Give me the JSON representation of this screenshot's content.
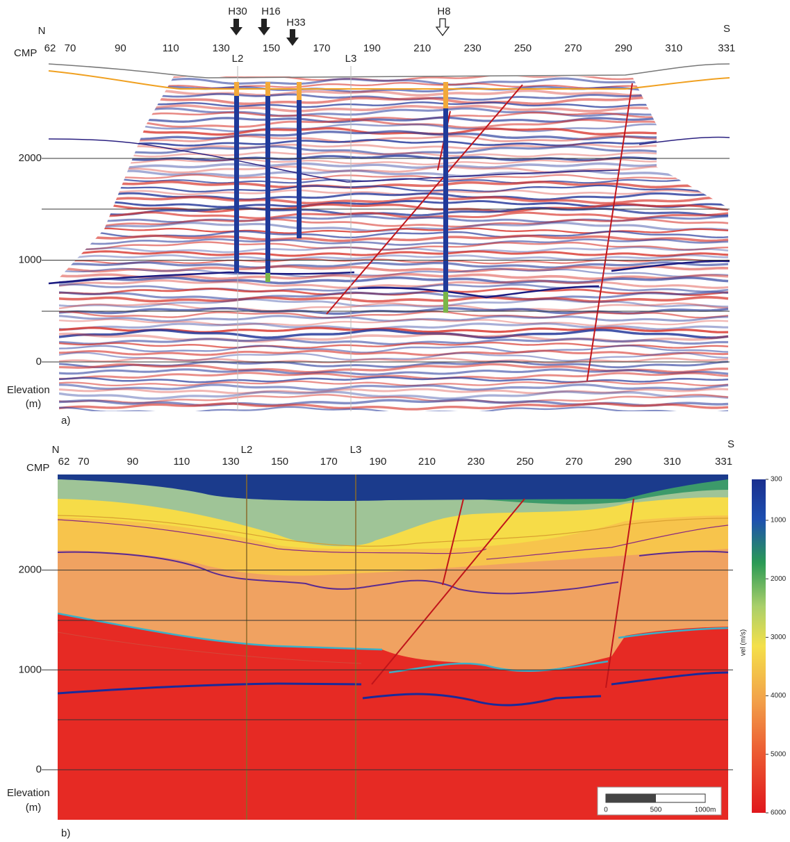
{
  "panel_a": {
    "label": "a)",
    "north": "N",
    "south": "S",
    "cmp_label": "CMP",
    "cmps": [
      62,
      70,
      90,
      110,
      130,
      150,
      170,
      190,
      210,
      230,
      250,
      270,
      290,
      310,
      331
    ],
    "lines": [
      "L2",
      "L3"
    ],
    "wells": [
      "H30",
      "H16",
      "H33",
      "H8"
    ],
    "elevation_ticks": [
      2000,
      1000,
      0
    ],
    "elevation_label": "Elevation",
    "elevation_unit": "(m)"
  },
  "panel_b": {
    "label": "b)",
    "north": "N",
    "south": "S",
    "cmp_label": "CMP",
    "cmps": [
      62,
      70,
      90,
      110,
      130,
      150,
      170,
      190,
      210,
      230,
      250,
      270,
      290,
      310,
      331
    ],
    "lines": [
      "L2",
      "L3"
    ],
    "elevation_ticks": [
      2000,
      1000,
      0
    ],
    "elevation_label": "Elevation",
    "elevation_unit": "(m)",
    "colorbar": {
      "label": "vel (m/s)",
      "ticks": [
        300,
        1000,
        2000,
        3000,
        4000,
        5000,
        6000
      ]
    },
    "scale_bar": [
      "0",
      "500",
      "1000m"
    ]
  }
}
